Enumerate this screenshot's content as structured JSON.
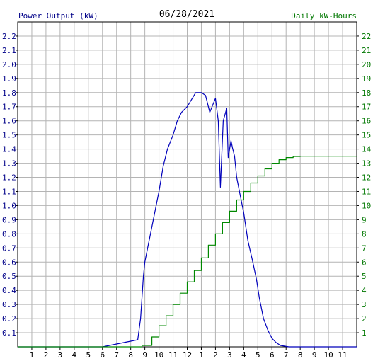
{
  "chart_data": {
    "type": "line",
    "title": "06/28/2021",
    "ylabel_left": "Power Output (kW)",
    "ylabel_right": "Daily kW-Hours",
    "x_tick_labels": [
      "1",
      "2",
      "3",
      "4",
      "5",
      "6",
      "7",
      "8",
      "9",
      "10",
      "11",
      "12",
      "1",
      "2",
      "3",
      "4",
      "5",
      "6",
      "7",
      "8",
      "9",
      "10",
      "11"
    ],
    "x_range_hours": [
      0,
      24
    ],
    "y_left_range": [
      0,
      2.3
    ],
    "y_left_ticks": [
      "0.1",
      "0.2",
      "0.3",
      "0.4",
      "0.5",
      "0.6",
      "0.7",
      "0.8",
      "0.9",
      "1.0",
      "1.1",
      "1.2",
      "1.3",
      "1.4",
      "1.5",
      "1.6",
      "1.7",
      "1.8",
      "1.9",
      "2.0",
      "2.1",
      "2.2"
    ],
    "y_right_range": [
      0,
      23
    ],
    "y_right_ticks": [
      "1",
      "2",
      "3",
      "4",
      "5",
      "6",
      "7",
      "8",
      "9",
      "10",
      "11",
      "12",
      "13",
      "14",
      "15",
      "16",
      "17",
      "18",
      "19",
      "20",
      "21",
      "22"
    ],
    "grid": true,
    "colors": {
      "power": "#0000bb",
      "energy": "#008800",
      "left_axis_text": "#000088",
      "right_axis_text": "#007700",
      "grid": "#b4b4b4",
      "axis": "#000000"
    },
    "series": [
      {
        "axis": "left",
        "hours": [
          0,
          6.0,
          6.5,
          7.0,
          7.5,
          8.0,
          8.5,
          8.7,
          8.9,
          9.0,
          9.2,
          9.5,
          9.8,
          10.0,
          10.3,
          10.6,
          11.0,
          11.3,
          11.6,
          12.0,
          12.3,
          12.6,
          13.0,
          13.3,
          13.6,
          14.0,
          14.2,
          14.35,
          14.55,
          14.8,
          14.9,
          15.1,
          15.2,
          15.35,
          15.5,
          15.7,
          16.0,
          16.15,
          16.3,
          16.6,
          16.9,
          17.1,
          17.4,
          17.7,
          18.0,
          18.3,
          18.6,
          18.9,
          19.2,
          19.5,
          19.8,
          20.1,
          20.5,
          21.0,
          21.2,
          24.0
        ],
        "values": [
          0,
          0,
          0.01,
          0.02,
          0.03,
          0.04,
          0.05,
          0.2,
          0.5,
          0.6,
          0.7,
          0.85,
          1.0,
          1.1,
          1.28,
          1.4,
          1.5,
          1.6,
          1.66,
          1.7,
          1.75,
          1.8,
          1.8,
          1.78,
          1.66,
          1.76,
          1.6,
          1.13,
          1.6,
          1.69,
          1.34,
          1.46,
          1.41,
          1.35,
          1.2,
          1.1,
          0.95,
          0.85,
          0.75,
          0.62,
          0.48,
          0.35,
          0.2,
          0.12,
          0.06,
          0.03,
          0.01,
          0.005,
          0,
          0,
          0,
          0,
          0,
          0,
          0,
          0
        ]
      },
      {
        "axis": "right",
        "hours": [
          0,
          8.0,
          8.8,
          9.5,
          10.0,
          10.5,
          11.0,
          11.5,
          12.0,
          12.5,
          13.0,
          13.5,
          14.0,
          14.5,
          15.0,
          15.5,
          16.0,
          16.5,
          17.0,
          17.5,
          18.0,
          18.5,
          19.0,
          19.5,
          20.0,
          20.5,
          21.0,
          24.0
        ],
        "values": [
          0,
          0,
          0.1,
          0.7,
          1.5,
          2.2,
          3.0,
          3.8,
          4.6,
          5.4,
          6.3,
          7.2,
          8.0,
          8.8,
          9.6,
          10.4,
          11.0,
          11.6,
          12.1,
          12.6,
          13.0,
          13.25,
          13.4,
          13.48,
          13.5,
          13.5,
          13.5,
          13.5
        ]
      }
    ]
  }
}
